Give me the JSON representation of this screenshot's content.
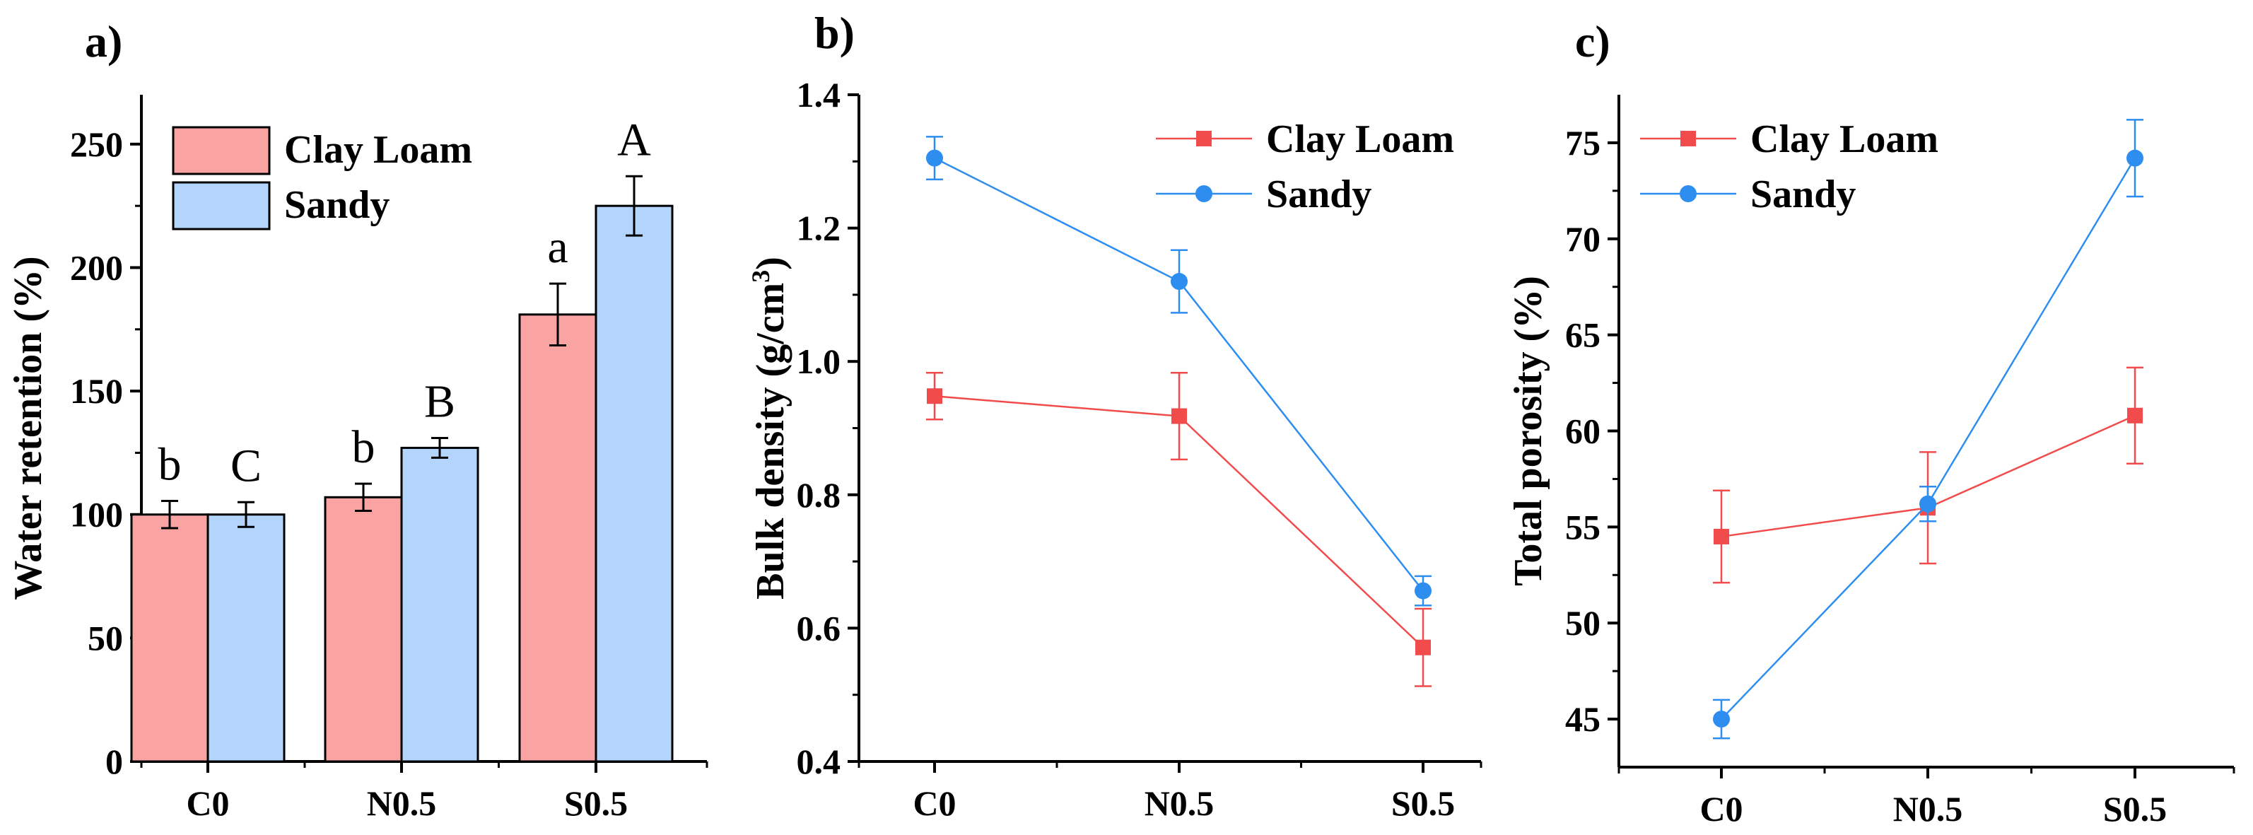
{
  "colors": {
    "clay_bar": "#f9a3a3",
    "sandy_bar": "#b3d5fb",
    "clay_line": "#f24b4b",
    "sandy_line": "#2e8ef0",
    "bar_edge": "#000000"
  },
  "chart_data": [
    {
      "panel_label": "a)",
      "type": "bar",
      "title": "",
      "xlabel": "",
      "ylabel": "Water retention (%)",
      "categories": [
        "C0",
        "N0.5",
        "S0.5"
      ],
      "ylim": [
        0,
        270
      ],
      "yticks": [
        0,
        50,
        100,
        150,
        200,
        250
      ],
      "series": [
        {
          "name": "Clay Loam",
          "values": [
            100,
            107,
            181
          ],
          "errors": [
            5.5,
            5.5,
            12.5
          ],
          "labels": [
            "b",
            "b",
            "a"
          ]
        },
        {
          "name": "Sandy",
          "values": [
            100,
            127,
            225
          ],
          "errors": [
            5,
            4,
            12
          ],
          "labels": [
            "C",
            "B",
            "A"
          ]
        }
      ],
      "legend_position": "top-left"
    },
    {
      "panel_label": "b)",
      "type": "line",
      "title": "",
      "xlabel": "",
      "ylabel": "Bulk density (g/cm",
      "ylabel_sup": "3",
      "ylabel_end": ")",
      "categories": [
        "C0",
        "N0.5",
        "S0.5"
      ],
      "ylim": [
        0.4,
        1.4
      ],
      "yticks": [
        "0.4",
        "0.6",
        "0.8",
        "1.0",
        "1.2",
        "1.4"
      ],
      "series": [
        {
          "name": "Clay Loam",
          "marker": "square",
          "values": [
            0.948,
            0.918,
            0.571
          ],
          "errors": [
            0.035,
            0.065,
            0.058
          ]
        },
        {
          "name": "Sandy",
          "marker": "circle",
          "values": [
            1.305,
            1.12,
            0.656
          ],
          "errors": [
            0.032,
            0.047,
            0.022
          ]
        }
      ],
      "legend_position": "top-right"
    },
    {
      "panel_label": "c)",
      "type": "line",
      "title": "",
      "xlabel": "",
      "ylabel": "Total porosity (%)",
      "categories": [
        "C0",
        "N0.5",
        "S0.5"
      ],
      "ylim": [
        42.5,
        77.5
      ],
      "yticks": [
        45,
        50,
        55,
        60,
        65,
        70,
        75
      ],
      "series": [
        {
          "name": "Clay Loam",
          "marker": "square",
          "values": [
            54.5,
            56,
            60.8
          ],
          "errors": [
            2.4,
            2.9,
            2.5
          ]
        },
        {
          "name": "Sandy",
          "marker": "circle",
          "values": [
            45,
            56.2,
            74.2
          ],
          "errors": [
            1,
            0.9,
            2
          ]
        }
      ],
      "legend_position": "top-left"
    }
  ]
}
